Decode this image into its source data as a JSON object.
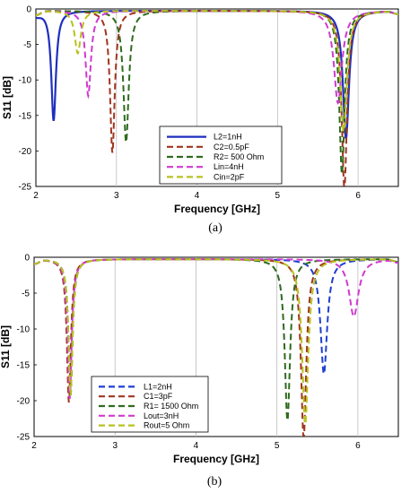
{
  "chart_data": [
    {
      "type": "line",
      "caption": "(a)",
      "xlabel": "Frequency [GHz]",
      "ylabel": "S11 [dB]",
      "xlim": [
        2,
        6.5
      ],
      "ylim": [
        -25,
        0
      ],
      "xticks": [
        "2",
        "3",
        "4",
        "5",
        "6"
      ],
      "yticks": [
        "0",
        "-5",
        "-10",
        "-15",
        "-20",
        "-25"
      ],
      "grid": "vertical",
      "legend_position": "lower-right-center",
      "series": [
        {
          "name": "L2=1nH",
          "color": "#1f2fbf",
          "dash": "solid",
          "dips": [
            {
              "f": 2.22,
              "depth": -15.5,
              "w": 0.035
            },
            {
              "f": 5.85,
              "depth": -18.0,
              "w": 0.045
            }
          ]
        },
        {
          "name": "C2=0.5pF",
          "color": "#a0341e",
          "dash": "dashed",
          "dips": [
            {
              "f": 2.95,
              "depth": -20.0,
              "w": 0.035
            },
            {
              "f": 5.83,
              "depth": -25.0,
              "w": 0.04
            }
          ]
        },
        {
          "name": "R2= 500 Ohm",
          "color": "#2e6b1e",
          "dash": "dashed",
          "dips": [
            {
              "f": 3.12,
              "depth": -18.5,
              "w": 0.04
            },
            {
              "f": 5.8,
              "depth": -23.0,
              "w": 0.04
            }
          ]
        },
        {
          "name": "Lin=4nH",
          "color": "#d03ad0",
          "dash": "dashed",
          "dips": [
            {
              "f": 2.65,
              "depth": -12.0,
              "w": 0.04
            },
            {
              "f": 5.75,
              "depth": -13.0,
              "w": 0.06
            }
          ]
        },
        {
          "name": "Cin=2pF",
          "color": "#b8c21e",
          "dash": "dashed",
          "dips": [
            {
              "f": 2.52,
              "depth": -6.0,
              "w": 0.045
            },
            {
              "f": 5.82,
              "depth": -17.0,
              "w": 0.05
            }
          ]
        }
      ]
    },
    {
      "type": "line",
      "caption": "(b)",
      "xlabel": "Frequency [GHz]",
      "ylabel": "S11 [dB]",
      "xlim": [
        2,
        6.5
      ],
      "ylim": [
        -25,
        0
      ],
      "xticks": [
        "2",
        "3",
        "4",
        "5",
        "6"
      ],
      "yticks": [
        "0",
        "-5",
        "-10",
        "-15",
        "-20",
        "-25"
      ],
      "grid": "vertical",
      "legend_position": "lower-left-center",
      "series": [
        {
          "name": "L1=2nH",
          "color": "#1f3fd0",
          "dash": "dashed",
          "dips": [
            {
              "f": 2.45,
              "depth": -19.0,
              "w": 0.03
            },
            {
              "f": 5.58,
              "depth": -16.0,
              "w": 0.05
            }
          ]
        },
        {
          "name": "C1=3pF",
          "color": "#a0341e",
          "dash": "dashed",
          "dips": [
            {
              "f": 2.43,
              "depth": -20.0,
              "w": 0.03
            },
            {
              "f": 5.33,
              "depth": -25.0,
              "w": 0.04
            }
          ]
        },
        {
          "name": "R1= 1500 Ohm",
          "color": "#2e6b1e",
          "dash": "dashed",
          "dips": [
            {
              "f": 2.45,
              "depth": -19.0,
              "w": 0.03
            },
            {
              "f": 5.13,
              "depth": -22.5,
              "w": 0.04
            }
          ]
        },
        {
          "name": "Lout=3nH",
          "color": "#d03ad0",
          "dash": "dashed",
          "dips": [
            {
              "f": 2.44,
              "depth": -19.5,
              "w": 0.03
            },
            {
              "f": 5.95,
              "depth": -8.0,
              "w": 0.07
            }
          ]
        },
        {
          "name": "Rout=5 Ohm",
          "color": "#b8c21e",
          "dash": "dashed",
          "dips": [
            {
              "f": 2.45,
              "depth": -19.0,
              "w": 0.03
            },
            {
              "f": 5.35,
              "depth": -23.0,
              "w": 0.045
            }
          ]
        }
      ]
    }
  ]
}
